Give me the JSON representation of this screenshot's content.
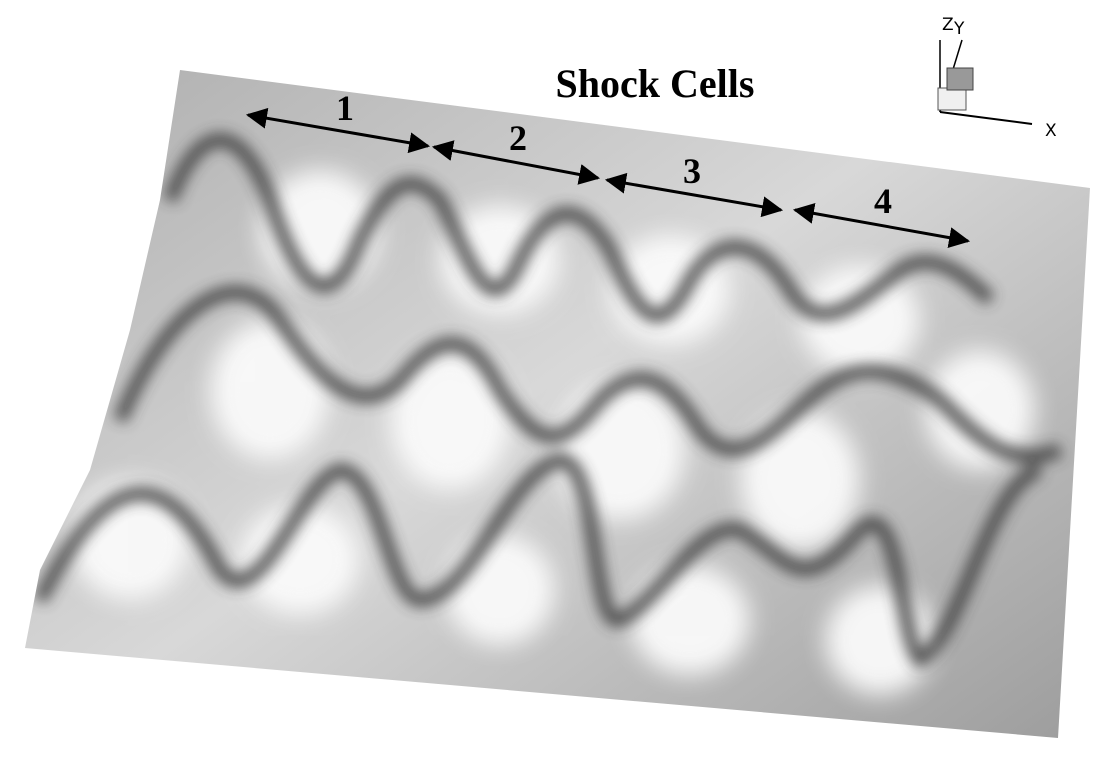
{
  "title": "Shock Cells",
  "cells": [
    {
      "label": "1"
    },
    {
      "label": "2"
    },
    {
      "label": "3"
    },
    {
      "label": "4"
    }
  ],
  "axes": {
    "z": "Z",
    "y": "Y",
    "x": "X"
  }
}
